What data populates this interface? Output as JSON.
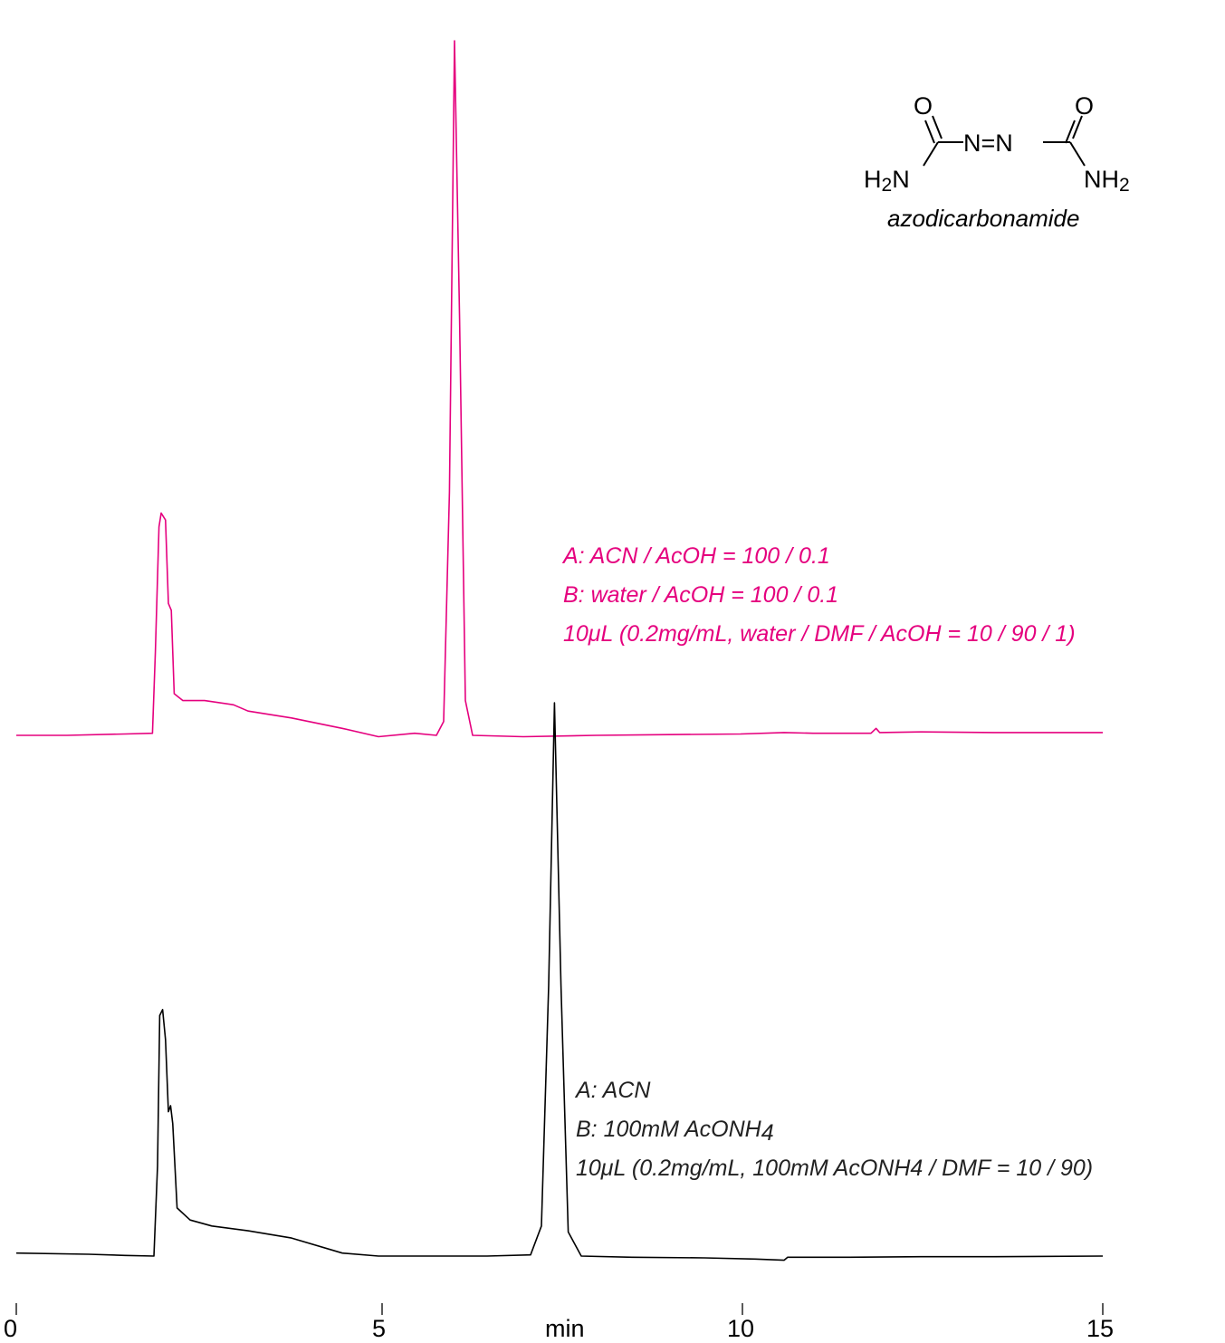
{
  "chart_data": {
    "type": "line",
    "title": "",
    "xlabel": "min",
    "ylabel": "",
    "xlim": [
      0,
      15
    ],
    "x_ticks": [
      "0",
      "5",
      "10",
      "15"
    ],
    "series": [
      {
        "color": "#e5007e",
        "baseline_offset": 1,
        "conditions": [
          "A: ACN / AcOH = 100 / 0.1",
          "B: water / AcOH = 100 / 0.1",
          "10μL (0.2mg/mL, water / DMF / AcOH = 10 / 90 / 1)"
        ],
        "points": [
          [
            0.0,
            0.0
          ],
          [
            0.7,
            0.0
          ],
          [
            1.5,
            0.002
          ],
          [
            1.88,
            0.003
          ],
          [
            1.92,
            0.12
          ],
          [
            1.97,
            0.3
          ],
          [
            2.0,
            0.32
          ],
          [
            2.06,
            0.31
          ],
          [
            2.1,
            0.19
          ],
          [
            2.14,
            0.18
          ],
          [
            2.18,
            0.06
          ],
          [
            2.3,
            0.05
          ],
          [
            2.6,
            0.05
          ],
          [
            3.0,
            0.044
          ],
          [
            3.2,
            0.035
          ],
          [
            3.8,
            0.025
          ],
          [
            4.5,
            0.01
          ],
          [
            5.0,
            -0.002
          ],
          [
            5.5,
            0.003
          ],
          [
            5.8,
            0.0
          ],
          [
            5.9,
            0.02
          ],
          [
            5.98,
            0.35
          ],
          [
            6.05,
            1.0
          ],
          [
            6.12,
            0.6
          ],
          [
            6.2,
            0.05
          ],
          [
            6.3,
            0.0
          ],
          [
            7.0,
            -0.002
          ],
          [
            8.0,
            0.0
          ],
          [
            9.0,
            0.001
          ],
          [
            10.0,
            0.002
          ],
          [
            10.6,
            0.004
          ],
          [
            11.0,
            0.003
          ],
          [
            11.8,
            0.003
          ],
          [
            11.87,
            0.01
          ],
          [
            11.92,
            0.004
          ],
          [
            12.5,
            0.005
          ],
          [
            13.5,
            0.004
          ],
          [
            15.0,
            0.004
          ]
        ]
      },
      {
        "color": "#000000",
        "baseline_offset": 0,
        "conditions": [
          "A: ACN",
          "B: 100mM AcONH",
          "10μL (0.2mg/mL, 100mM AcONH"
        ],
        "conditions_rest": [
          "",
          "4",
          "4 / DMF = 10 / 90)"
        ],
        "points": [
          [
            0.0,
            0.005
          ],
          [
            1.0,
            0.003
          ],
          [
            1.5,
            0.001
          ],
          [
            1.9,
            0.0
          ],
          [
            1.95,
            0.15
          ],
          [
            1.98,
            0.4
          ],
          [
            2.02,
            0.41
          ],
          [
            2.06,
            0.36
          ],
          [
            2.1,
            0.24
          ],
          [
            2.13,
            0.25
          ],
          [
            2.16,
            0.22
          ],
          [
            2.22,
            0.08
          ],
          [
            2.4,
            0.06
          ],
          [
            2.7,
            0.05
          ],
          [
            3.2,
            0.042
          ],
          [
            3.8,
            0.03
          ],
          [
            4.5,
            0.005
          ],
          [
            5.0,
            0.0
          ],
          [
            6.5,
            0.0
          ],
          [
            7.1,
            0.002
          ],
          [
            7.25,
            0.05
          ],
          [
            7.35,
            0.45
          ],
          [
            7.43,
            0.92
          ],
          [
            7.52,
            0.45
          ],
          [
            7.62,
            0.04
          ],
          [
            7.8,
            0.0
          ],
          [
            8.5,
            -0.002
          ],
          [
            9.5,
            -0.003
          ],
          [
            10.2,
            -0.005
          ],
          [
            10.6,
            -0.007
          ],
          [
            10.65,
            -0.002
          ],
          [
            11.5,
            -0.002
          ],
          [
            12.5,
            -0.001
          ],
          [
            13.5,
            -0.001
          ],
          [
            15.0,
            0.0
          ]
        ]
      }
    ]
  },
  "structure": {
    "atoms": {
      "o_left": "O",
      "o_right": "O",
      "azo": "N=N",
      "h2n_h": "H",
      "h2n_sub": "2",
      "h2n_n": "N",
      "nh2_nh": "NH",
      "nh2_sub": "2"
    },
    "name": "azodicarbonamide"
  }
}
